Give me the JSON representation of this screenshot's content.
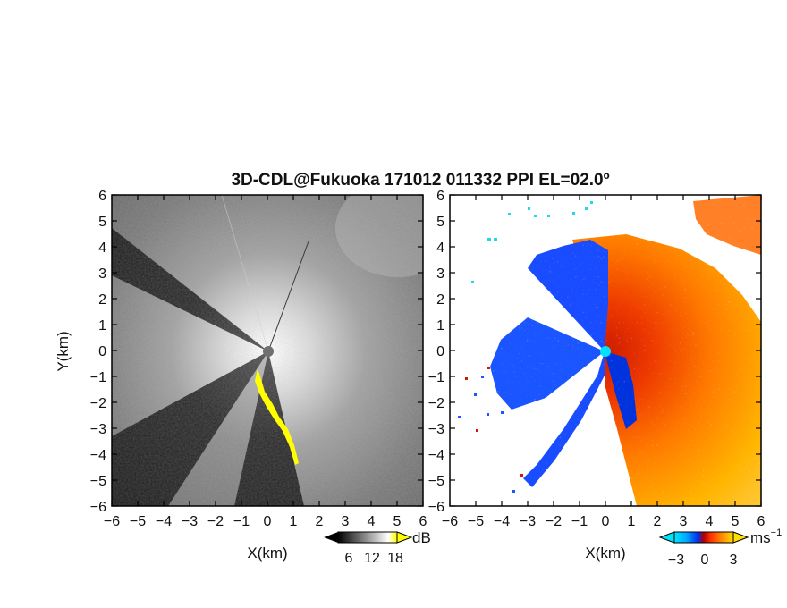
{
  "chart_data": [
    {
      "type": "heatmap",
      "panel": "reflectivity",
      "title": "3D-CDL@Fukuoka 171012 011332 PPI EL=02.0º",
      "xlabel": "X(km)",
      "ylabel": "Y(km)",
      "xlim": [
        -6,
        6
      ],
      "ylim": [
        -6,
        6
      ],
      "x_ticks": [
        "-6",
        "-5",
        "-4",
        "-3",
        "-2",
        "-1",
        "0",
        "1",
        "2",
        "3",
        "4",
        "5",
        "6"
      ],
      "y_ticks": [
        "-6",
        "-5",
        "-4",
        "-3",
        "-2",
        "-1",
        "0",
        "1",
        "2",
        "3",
        "4",
        "5",
        "6"
      ],
      "colorbar": {
        "unit": "dB",
        "ticks": [
          "6",
          "12",
          "18"
        ],
        "colors": [
          "#000000",
          "#2a2a2a",
          "#555555",
          "#808080",
          "#aaaaaa",
          "#d4d4d4",
          "#ffffff",
          "#ffff00"
        ]
      },
      "radar_position": [
        0,
        0
      ],
      "site_marker_color": "#707070",
      "highlight_color": "#ffff00"
    },
    {
      "type": "heatmap",
      "panel": "doppler-velocity",
      "xlabel": "X(km)",
      "xlim": [
        -6,
        6
      ],
      "ylim": [
        -6,
        6
      ],
      "x_ticks": [
        "-6",
        "-5",
        "-4",
        "-3",
        "-2",
        "-1",
        "0",
        "1",
        "2",
        "3",
        "4",
        "5",
        "6"
      ],
      "y_ticks": [
        "-6",
        "-5",
        "-4",
        "-3",
        "-2",
        "-1",
        "0",
        "1",
        "2",
        "3",
        "4",
        "5",
        "6"
      ],
      "colorbar": {
        "unit": "ms",
        "unit_exponent": "−1",
        "ticks": [
          "−3",
          "0",
          "3"
        ],
        "colors": [
          "#00e5ff",
          "#00aaff",
          "#0055ff",
          "#0000ee",
          "#cc0000",
          "#ff3300",
          "#ff7700",
          "#ffaa00",
          "#ffdd00"
        ]
      },
      "radar_position": [
        0,
        0
      ],
      "site_marker_color": "#00e0ff"
    }
  ]
}
